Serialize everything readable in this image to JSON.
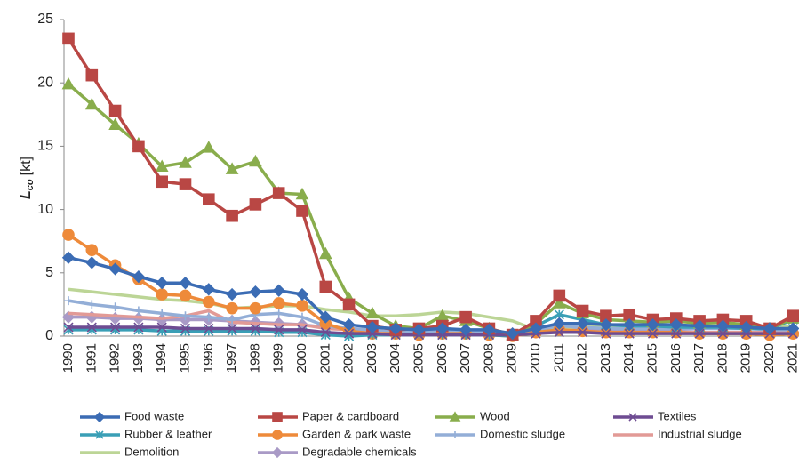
{
  "chart_data": {
    "type": "line",
    "ylabel": "L",
    "ylabel_sub": "co",
    "ylabel_unit": "[kt]",
    "categories": [
      "1990",
      "1991",
      "1992",
      "1993",
      "1994",
      "1995",
      "1996",
      "1997",
      "1998",
      "1999",
      "2000",
      "2001",
      "2002",
      "2003",
      "2004",
      "2005",
      "2006",
      "2007",
      "2008",
      "2009",
      "2010",
      "2011",
      "2012",
      "2013",
      "2014",
      "2015",
      "2016",
      "2017",
      "2018",
      "2019",
      "2020",
      "2021"
    ],
    "ylim": [
      0,
      25
    ],
    "yticks": [
      0,
      5,
      10,
      15,
      20,
      25
    ],
    "series": [
      {
        "name": "Food waste",
        "color": "#3b6cb4",
        "marker": "diamond",
        "values": [
          6.2,
          5.8,
          5.3,
          4.7,
          4.2,
          4.2,
          3.7,
          3.3,
          3.5,
          3.6,
          3.3,
          1.5,
          0.9,
          0.7,
          0.6,
          0.5,
          0.6,
          0.5,
          0.5,
          0.2,
          0.6,
          1.0,
          1.0,
          0.9,
          0.9,
          0.9,
          0.9,
          0.8,
          0.8,
          0.7,
          0.6,
          0.6
        ]
      },
      {
        "name": "Paper & cardboard",
        "color": "#b94744",
        "marker": "square",
        "values": [
          23.5,
          20.6,
          17.8,
          15.0,
          12.2,
          12.0,
          10.8,
          9.5,
          10.4,
          11.3,
          9.9,
          3.9,
          2.5,
          0.8,
          0.5,
          0.6,
          0.8,
          1.5,
          0.6,
          0.1,
          1.2,
          3.2,
          2.0,
          1.6,
          1.7,
          1.3,
          1.4,
          1.2,
          1.3,
          1.2,
          0.6,
          1.6
        ]
      },
      {
        "name": "Wood",
        "color": "#89ad4c",
        "marker": "triangle",
        "values": [
          19.9,
          18.3,
          16.7,
          15.2,
          13.4,
          13.7,
          14.9,
          13.2,
          13.8,
          11.3,
          11.2,
          6.5,
          3.0,
          1.8,
          0.8,
          0.6,
          1.6,
          1.2,
          0.6,
          0.1,
          1.0,
          2.6,
          1.8,
          1.3,
          1.2,
          1.1,
          1.2,
          1.0,
          1.1,
          0.9,
          0.6,
          1.4
        ]
      },
      {
        "name": "Textiles",
        "color": "#6e4c92",
        "marker": "x",
        "values": [
          0.7,
          0.7,
          0.7,
          0.7,
          0.7,
          0.6,
          0.6,
          0.6,
          0.6,
          0.5,
          0.5,
          0.3,
          0.2,
          0.2,
          0.1,
          0.1,
          0.1,
          0.1,
          0.1,
          0.1,
          0.2,
          0.3,
          0.3,
          0.2,
          0.2,
          0.2,
          0.2,
          0.2,
          0.2,
          0.2,
          0.2,
          0.2
        ]
      },
      {
        "name": "Rubber & leather",
        "color": "#3a9fb6",
        "marker": "asterisk",
        "values": [
          0.5,
          0.5,
          0.5,
          0.5,
          0.4,
          0.4,
          0.4,
          0.4,
          0.4,
          0.3,
          0.3,
          0.1,
          0.0,
          0.1,
          0.1,
          0.1,
          0.1,
          0.1,
          0.1,
          0.0,
          0.8,
          1.7,
          1.3,
          0.9,
          0.8,
          0.8,
          0.7,
          0.7,
          0.7,
          0.6,
          0.6,
          1.3
        ]
      },
      {
        "name": "Garden & park waste",
        "color": "#ee8a3a",
        "marker": "circle",
        "values": [
          8.0,
          6.8,
          5.6,
          4.5,
          3.3,
          3.2,
          2.7,
          2.2,
          2.2,
          2.6,
          2.4,
          1.0,
          0.4,
          0.2,
          0.2,
          0.1,
          0.2,
          0.2,
          0.1,
          0.0,
          0.3,
          0.5,
          0.4,
          0.3,
          0.3,
          0.3,
          0.3,
          0.2,
          0.2,
          0.2,
          0.1,
          0.2
        ]
      },
      {
        "name": "Domestic sludge",
        "color": "#93aed7",
        "marker": "plus",
        "values": [
          2.8,
          2.5,
          2.3,
          2.0,
          1.8,
          1.6,
          1.5,
          1.3,
          1.7,
          1.8,
          1.5,
          0.8,
          0.6,
          0.5,
          0.4,
          0.4,
          0.4,
          0.3,
          0.3,
          0.3,
          0.5,
          0.8,
          0.7,
          0.6,
          0.6,
          0.6,
          0.6,
          0.6,
          0.6,
          0.6,
          0.5,
          0.5
        ]
      },
      {
        "name": "Industrial sludge",
        "color": "#e29a96",
        "marker": "none",
        "values": [
          1.8,
          1.7,
          1.6,
          1.5,
          1.4,
          1.6,
          2.0,
          1.1,
          1.0,
          0.9,
          0.9,
          0.6,
          0.5,
          0.4,
          0.3,
          0.3,
          0.3,
          0.3,
          0.3,
          0.2,
          0.3,
          0.4,
          0.4,
          0.3,
          0.3,
          0.3,
          0.3,
          0.3,
          0.3,
          0.3,
          0.3,
          0.3
        ]
      },
      {
        "name": "Demolition",
        "color": "#bcd596",
        "marker": "none",
        "values": [
          3.7,
          3.5,
          3.3,
          3.1,
          2.9,
          2.8,
          2.6,
          2.2,
          2.3,
          2.4,
          2.4,
          2.1,
          1.9,
          1.6,
          1.6,
          1.7,
          1.9,
          1.8,
          1.5,
          1.2,
          0.5,
          0.6,
          0.8,
          0.8,
          0.8,
          0.8,
          0.8,
          0.8,
          0.8,
          0.8,
          0.8,
          0.8
        ]
      },
      {
        "name": "Degradable chemicals",
        "color": "#a99ac6",
        "marker": "diamond",
        "values": [
          1.5,
          1.5,
          1.4,
          1.4,
          1.3,
          1.3,
          1.3,
          1.2,
          1.1,
          1.0,
          0.9,
          0.7,
          0.6,
          0.5,
          0.4,
          0.4,
          0.4,
          0.4,
          0.3,
          0.2,
          0.3,
          0.5,
          0.5,
          0.4,
          0.4,
          0.4,
          0.4,
          0.3,
          0.3,
          0.3,
          0.3,
          0.3
        ]
      }
    ]
  }
}
